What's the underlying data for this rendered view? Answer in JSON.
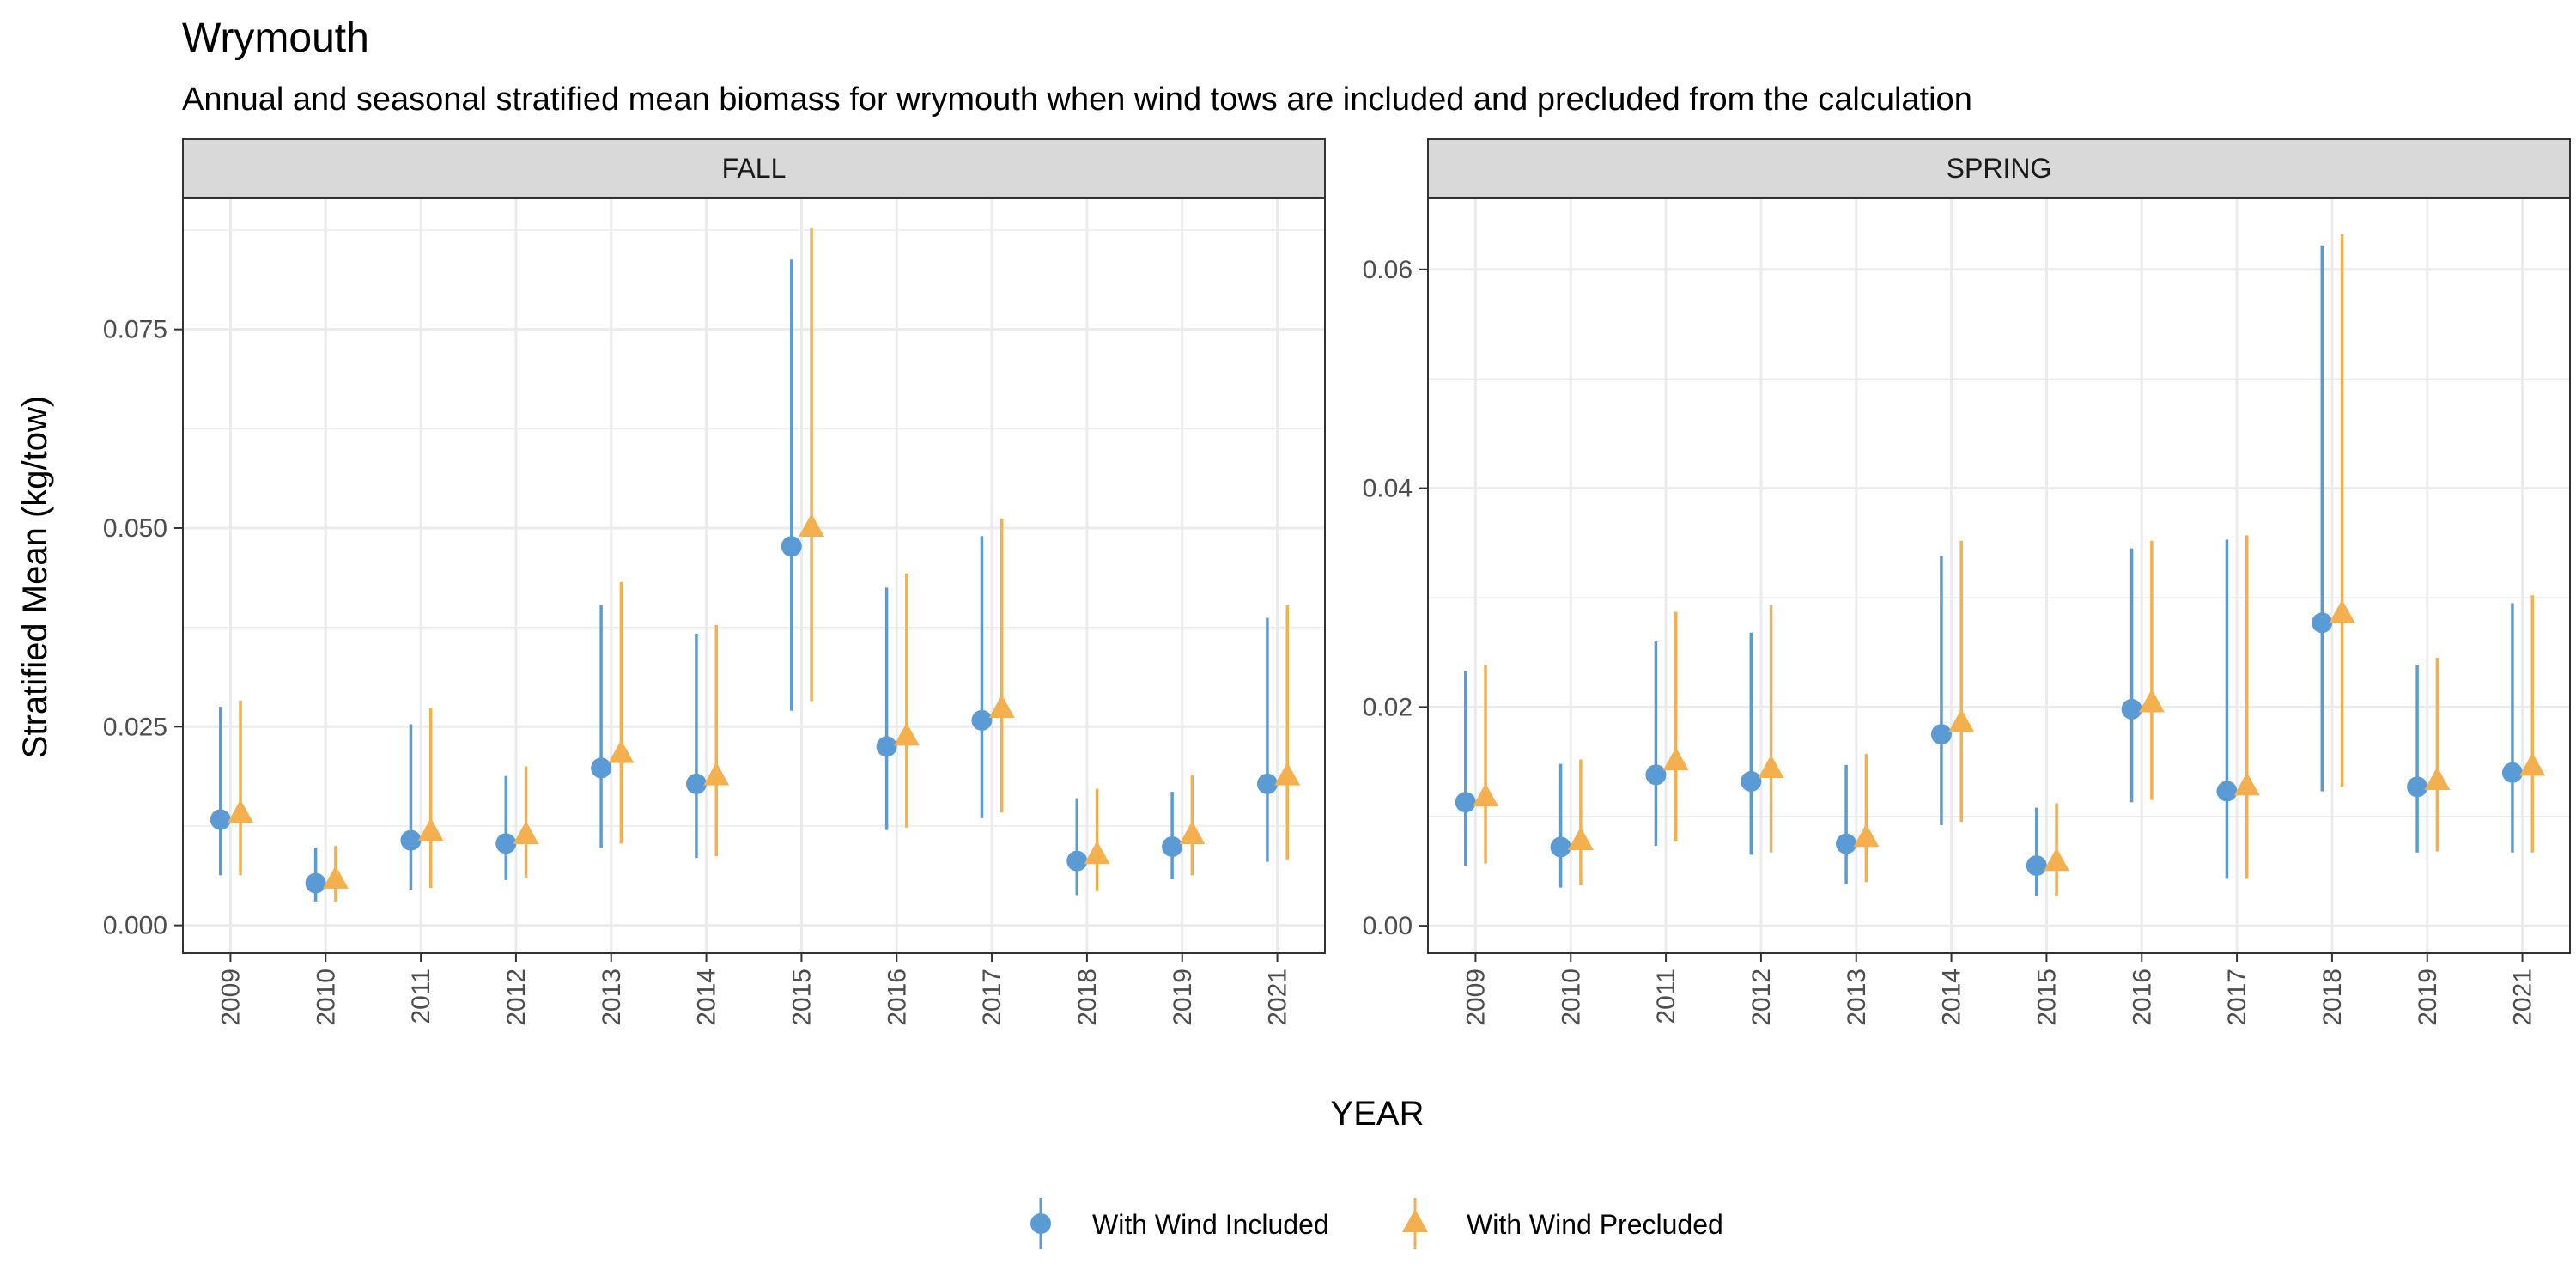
{
  "title": "Wrymouth",
  "subtitle": "Annual and seasonal stratified mean biomass for wrymouth when wind tows are included and precluded from the calculation",
  "colors": {
    "included": "#5B9BD5",
    "precluded": "#F4B04F",
    "strip_bg": "#D9D9D9",
    "grid": "#EBEBEB"
  },
  "chart_data": {
    "type": "scatter",
    "xlabel": "YEAR",
    "ylabel": "Stratified Mean (kg/tow)",
    "categories": [
      "2009",
      "2010",
      "2011",
      "2012",
      "2013",
      "2014",
      "2015",
      "2016",
      "2017",
      "2018",
      "2019",
      "2021"
    ],
    "legend_position": "bottom",
    "grid": true,
    "series_names": [
      "With Wind Included",
      "With Wind Precluded"
    ],
    "panels": [
      {
        "title": "FALL",
        "ylim": [
          -0.0035,
          0.0915
        ],
        "yticks": [
          0,
          0.025,
          0.05,
          0.075
        ],
        "ytick_labels": [
          "0.000",
          "0.025",
          "0.050",
          "0.075"
        ],
        "series": [
          {
            "name": "With Wind Included",
            "values": [
              0.0133,
              0.0053,
              0.0107,
              0.0103,
              0.0198,
              0.0178,
              0.0477,
              0.0225,
              0.0258,
              0.0081,
              0.0099,
              0.0178
            ],
            "lower": [
              0.0063,
              0.003,
              0.0045,
              0.0057,
              0.0097,
              0.0085,
              0.027,
              0.012,
              0.0135,
              0.0038,
              0.0058,
              0.008
            ],
            "upper": [
              0.0275,
              0.0098,
              0.0253,
              0.0188,
              0.0403,
              0.0367,
              0.0838,
              0.0425,
              0.049,
              0.016,
              0.0168,
              0.0387
            ]
          },
          {
            "name": "With Wind Precluded",
            "values": [
              0.014,
              0.0057,
              0.0117,
              0.0113,
              0.0215,
              0.0187,
              0.05,
              0.0237,
              0.0272,
              0.0088,
              0.0113,
              0.0187
            ],
            "lower": [
              0.0063,
              0.003,
              0.0047,
              0.006,
              0.0103,
              0.0087,
              0.0282,
              0.0123,
              0.0142,
              0.0043,
              0.0063,
              0.0083
            ],
            "upper": [
              0.0283,
              0.01,
              0.0273,
              0.02,
              0.0432,
              0.0378,
              0.0878,
              0.0443,
              0.0512,
              0.0172,
              0.019,
              0.0403
            ]
          }
        ]
      },
      {
        "title": "SPRING",
        "ylim": [
          -0.0025,
          0.0665
        ],
        "yticks": [
          0,
          0.02,
          0.04,
          0.06
        ],
        "ytick_labels": [
          "0.00",
          "0.02",
          "0.04",
          "0.06"
        ],
        "series": [
          {
            "name": "With Wind Included",
            "values": [
              0.0113,
              0.0072,
              0.0138,
              0.0132,
              0.0075,
              0.0175,
              0.0055,
              0.0198,
              0.0123,
              0.0277,
              0.0127,
              0.014
            ],
            "lower": [
              0.0055,
              0.0035,
              0.0073,
              0.0065,
              0.0038,
              0.0092,
              0.0027,
              0.0113,
              0.0043,
              0.0123,
              0.0067,
              0.0067
            ],
            "upper": [
              0.0233,
              0.0148,
              0.026,
              0.0268,
              0.0147,
              0.0338,
              0.0108,
              0.0345,
              0.0353,
              0.0622,
              0.0238,
              0.0295
            ]
          },
          {
            "name": "With Wind Precluded",
            "values": [
              0.0117,
              0.0077,
              0.015,
              0.0143,
              0.008,
              0.0185,
              0.0058,
              0.0203,
              0.0127,
              0.0285,
              0.0132,
              0.0145
            ],
            "lower": [
              0.0057,
              0.0037,
              0.0077,
              0.0067,
              0.004,
              0.0095,
              0.0027,
              0.0115,
              0.0043,
              0.0127,
              0.0068,
              0.0067
            ],
            "upper": [
              0.0238,
              0.0152,
              0.0287,
              0.0293,
              0.0157,
              0.0352,
              0.0112,
              0.0352,
              0.0357,
              0.0632,
              0.0245,
              0.0302
            ]
          }
        ]
      }
    ]
  }
}
